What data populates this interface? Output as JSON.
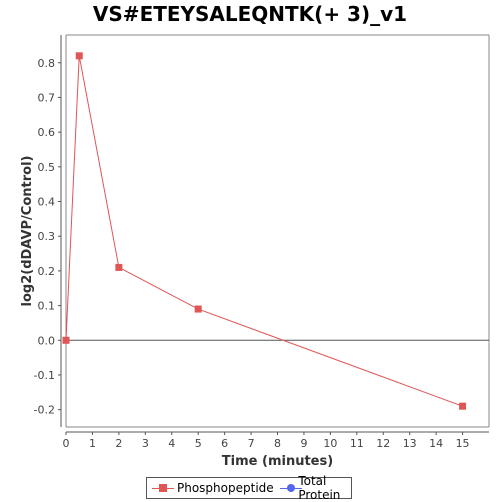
{
  "chart_data": {
    "type": "line",
    "title": "VS#ETEYSALEQNTK(+ 3)_v1",
    "xlabel": "Time (minutes)",
    "ylabel": "log2(dDAVP/Control)",
    "xlim": [
      0,
      16
    ],
    "ylim": [
      -0.25,
      0.88
    ],
    "xticks": [
      0,
      1,
      2,
      3,
      4,
      5,
      6,
      7,
      8,
      9,
      10,
      11,
      12,
      13,
      14,
      15
    ],
    "yticks": [
      -0.2,
      -0.1,
      0.0,
      0.1,
      0.2,
      0.3,
      0.4,
      0.5,
      0.6,
      0.7,
      0.8
    ],
    "ytick_labels": [
      "-0.2",
      "-0.1",
      "0.0",
      "0.1",
      "0.2",
      "0.3",
      "0.4",
      "0.5",
      "0.6",
      "0.7",
      "0.8"
    ],
    "zero_line": true,
    "grid": false,
    "legend_position": "bottom",
    "series": [
      {
        "name": "Phosphopeptide",
        "color": "#e05555",
        "marker": "square",
        "points": [
          {
            "x": 0,
            "y": 0.0
          },
          {
            "x": 0.5,
            "y": 0.82
          },
          {
            "x": 2,
            "y": 0.21
          },
          {
            "x": 5,
            "y": 0.09
          },
          {
            "x": 15,
            "y": -0.19
          }
        ]
      },
      {
        "name": "Total Protein",
        "color": "#5566ee",
        "marker": "circle",
        "points": []
      }
    ]
  }
}
